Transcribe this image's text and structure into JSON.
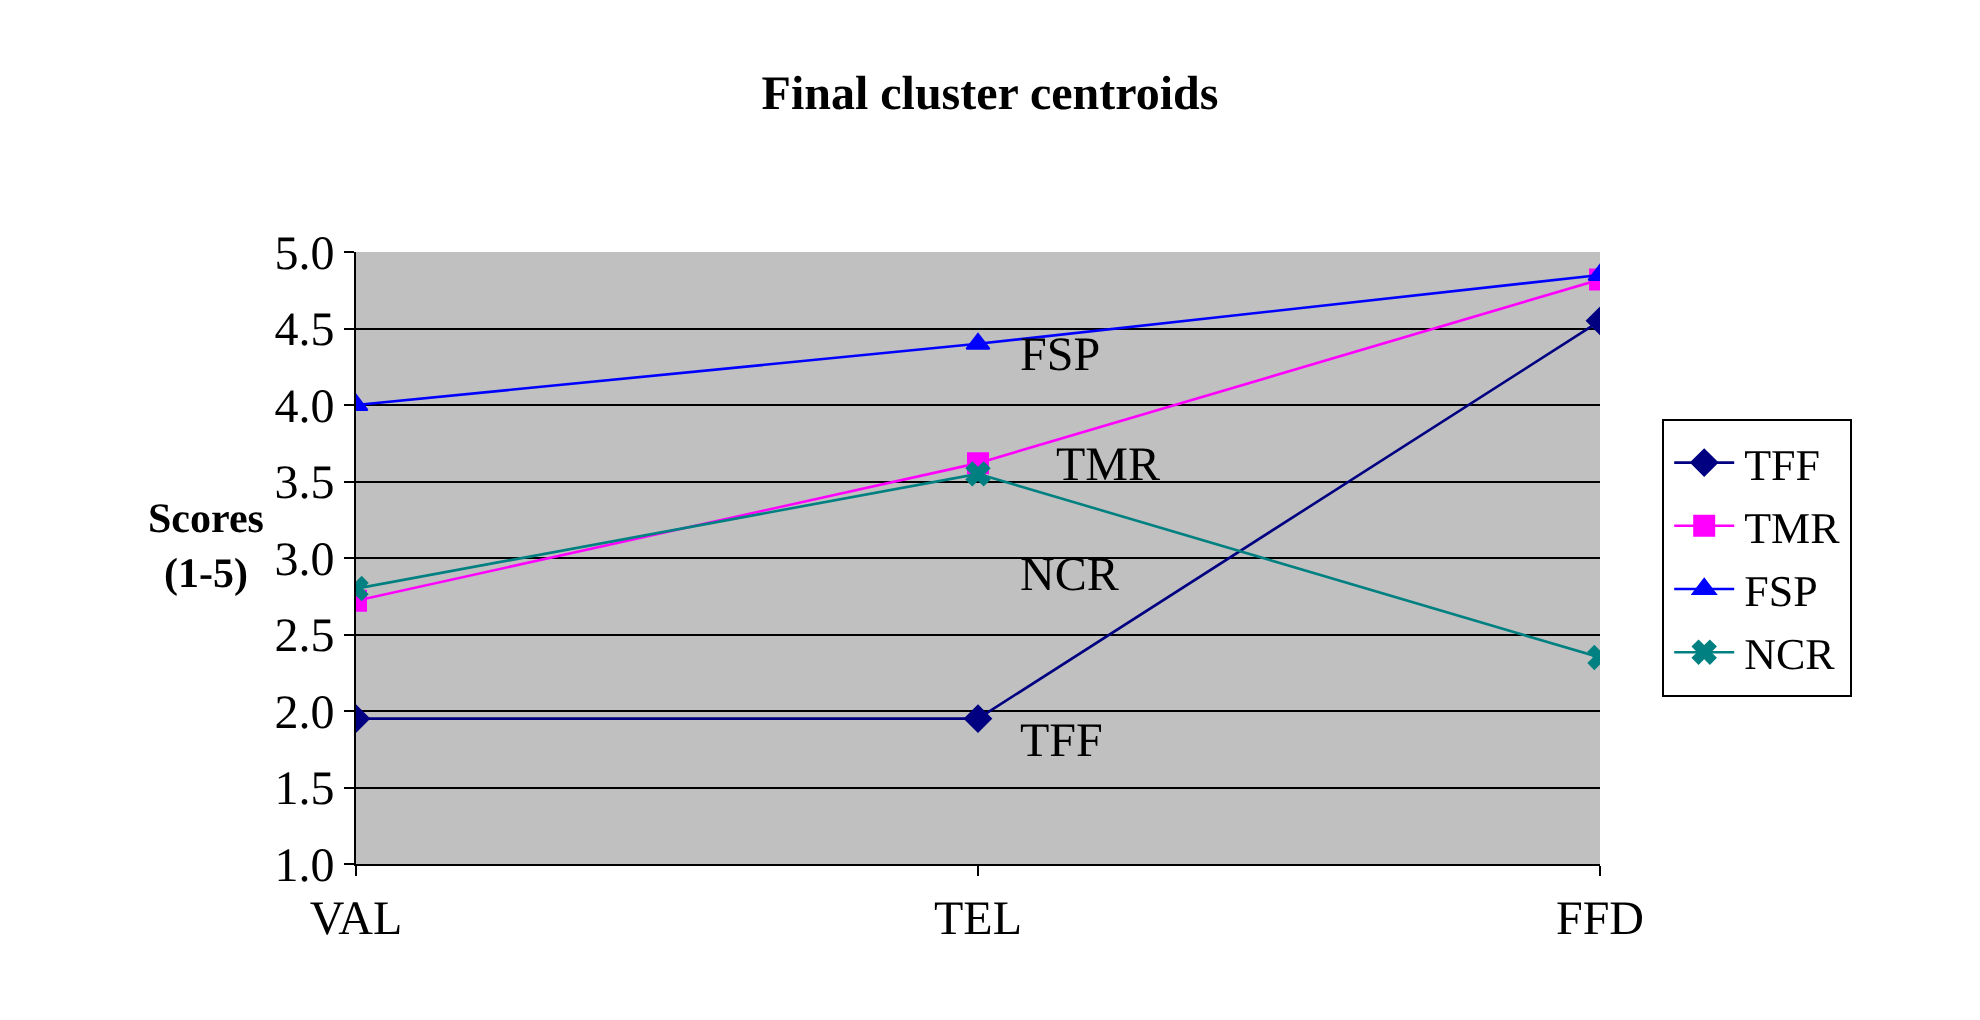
{
  "chart_data": {
    "type": "line",
    "title": "Final cluster centroids",
    "ylabel": "Scores\n(1-5)",
    "categories": [
      "VAL",
      "TEL",
      "FFD"
    ],
    "series": [
      {
        "name": "TFF",
        "color": "#000080",
        "marker": "diamond",
        "values": [
          1.95,
          1.95,
          4.55
        ]
      },
      {
        "name": "TMR",
        "color": "#ff00ff",
        "marker": "square",
        "values": [
          2.72,
          3.62,
          4.82
        ]
      },
      {
        "name": "FSP",
        "color": "#0000ff",
        "marker": "triangle",
        "values": [
          4.0,
          4.4,
          4.85
        ]
      },
      {
        "name": "NCR",
        "color": "#008080",
        "marker": "cross",
        "values": [
          2.8,
          3.55,
          2.35
        ]
      }
    ],
    "annotations": [
      "FSP",
      "TMR",
      "NCR",
      "TFF"
    ],
    "ylim": [
      1.0,
      5.0
    ],
    "yticks": [
      {
        "value": 1,
        "label": "1.0"
      },
      {
        "value": 1.5,
        "label": "1.5"
      },
      {
        "value": 2,
        "label": "2.0"
      },
      {
        "value": 2.5,
        "label": "2.5"
      },
      {
        "value": 3,
        "label": "3.0"
      },
      {
        "value": 3.5,
        "label": "3.5"
      },
      {
        "value": 4,
        "label": "4.0"
      },
      {
        "value": 4.5,
        "label": "4.5"
      },
      {
        "value": 5,
        "label": "5.0"
      }
    ],
    "grid": "y",
    "legend": "right"
  }
}
